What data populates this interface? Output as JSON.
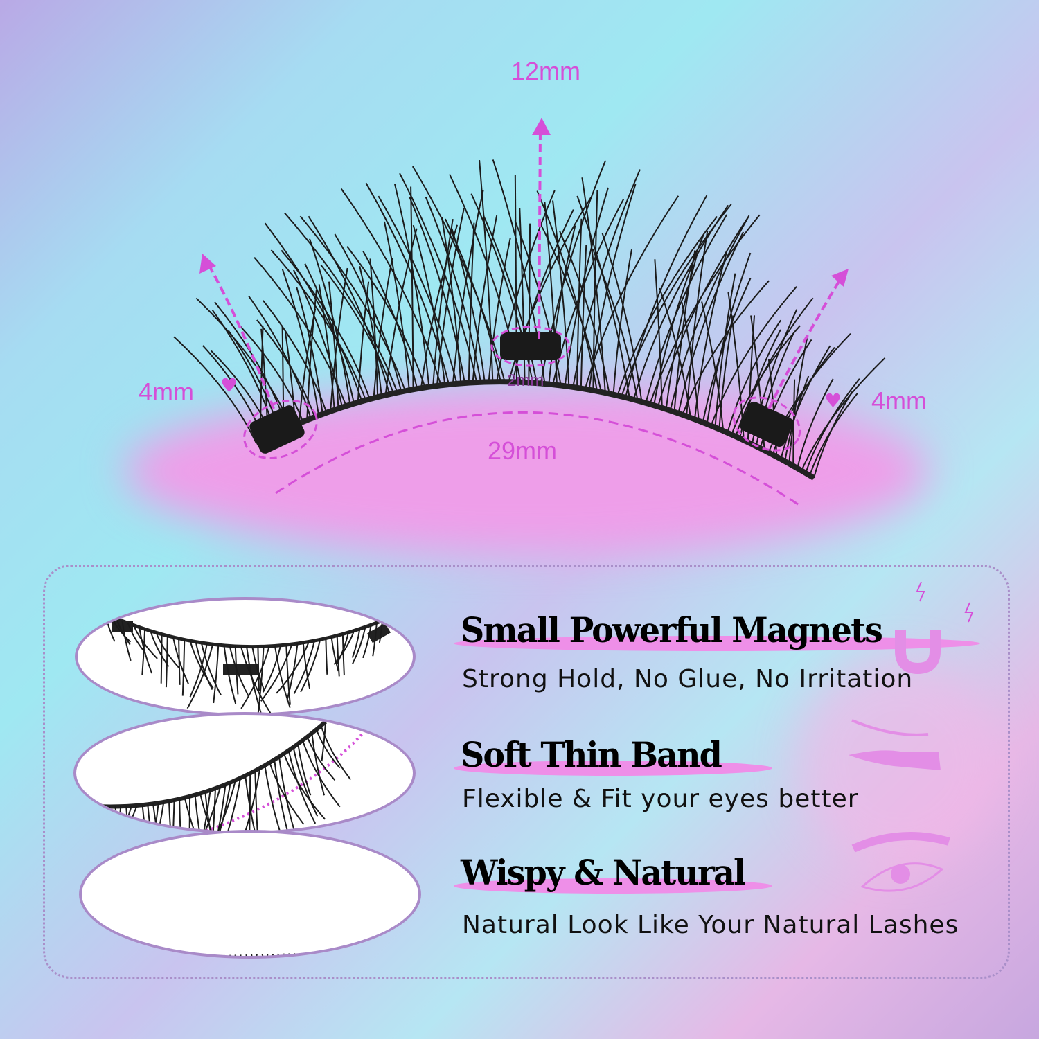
{
  "measurements": {
    "length_center": "12mm",
    "length_left": "4mm",
    "length_right": "4mm",
    "magnet_width": "2mm",
    "band_length": "29mm"
  },
  "features": [
    {
      "title": "Small Powerful Magnets",
      "subtitle": "Strong Hold, No Glue, No Irritation",
      "icon": "magnet-icon"
    },
    {
      "title": "Soft Thin Band",
      "subtitle": "Flexible & Fit your eyes better",
      "icon": "hand-lash-icon"
    },
    {
      "title": "Wispy & Natural",
      "subtitle": "Natural Look Like Your Natural Lashes",
      "icon": "eye-icon"
    }
  ],
  "colors": {
    "accent": "#d54fd8",
    "highlight": "#ee8fe8",
    "oval_border": "#a98ac8"
  }
}
